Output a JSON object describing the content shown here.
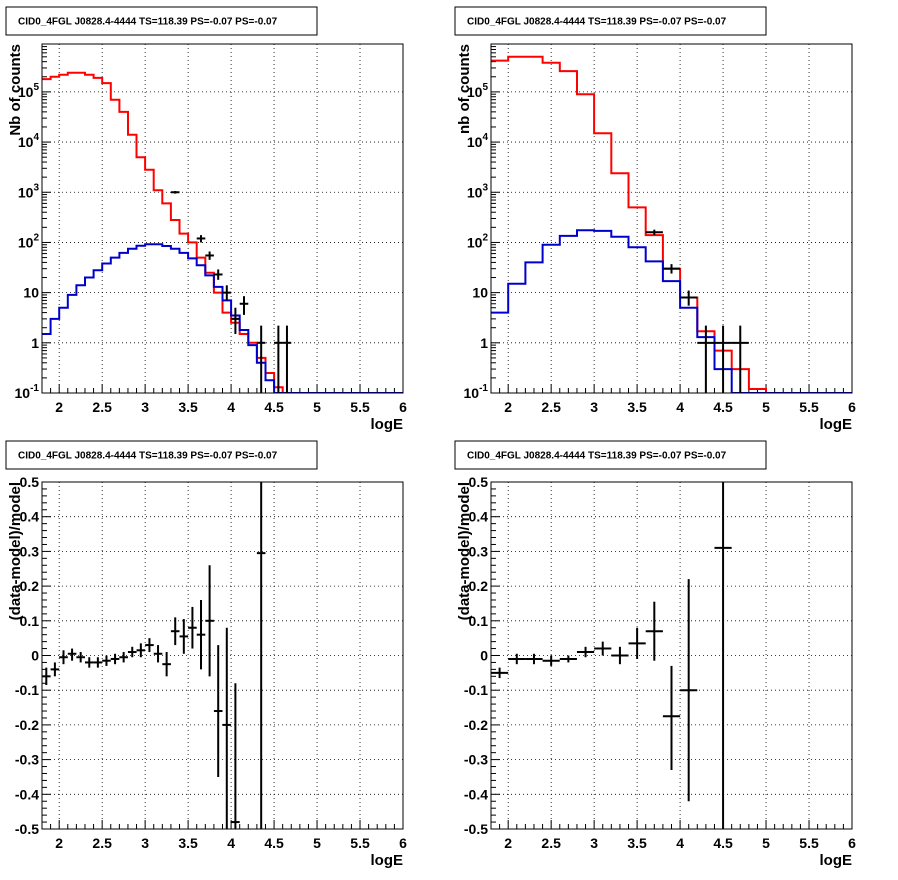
{
  "panel_title": "CID0_4FGL J0828.4-4444 TS=118.39 PS=-0.07 PS=-0.07",
  "colors": {
    "model_total": "#ff0000",
    "model_source": "#0000cc",
    "data": "#000000",
    "grid": "#000000"
  },
  "chart_data": [
    {
      "type": "line",
      "title": "CID0_4FGL J0828.4-4444 TS=118.39 PS=-0.07 PS=-0.07",
      "xlabel": "logE",
      "ylabel": "Nb of counts",
      "xlim": [
        1.8,
        6.0
      ],
      "ylim": [
        0.1,
        900000
      ],
      "yscale": "log",
      "grid": true,
      "x_ticks": [
        "2",
        "2.5",
        "3",
        "3.5",
        "4",
        "4.5",
        "5",
        "5.5",
        "6"
      ],
      "y_ticks": [
        "10-1",
        "1",
        "10",
        "10^2",
        "10^3",
        "10^4",
        "10^5"
      ],
      "series": [
        {
          "style": "step",
          "color": "red",
          "edges": [
            1.8,
            1.9,
            2.0,
            2.1,
            2.2,
            2.3,
            2.4,
            2.5,
            2.6,
            2.7,
            2.8,
            2.9,
            3.0,
            3.1,
            3.2,
            3.3,
            3.4,
            3.5,
            3.6,
            3.7,
            3.8,
            3.9,
            4.0,
            4.1,
            4.2,
            4.3,
            4.4,
            4.5,
            4.6,
            4.7,
            4.8,
            4.9,
            5.0,
            5.1,
            5.2,
            5.3,
            5.4,
            5.5,
            5.6,
            5.7,
            5.8,
            5.9,
            6.0
          ],
          "values": [
            180000,
            200000,
            220000,
            240000,
            240000,
            220000,
            190000,
            150000,
            70000,
            40000,
            14000,
            5000,
            2800,
            1100,
            600,
            280,
            150,
            100,
            50,
            25,
            10,
            4,
            2.5,
            1.5,
            1.0,
            0.5,
            0.25,
            0.13,
            0.1,
            0.1,
            0.1,
            0.1,
            0.1,
            0.1,
            0.1,
            0.1,
            0.1,
            0.1,
            0.1,
            0.1,
            0.1,
            0.1
          ]
        },
        {
          "style": "step",
          "color": "blue",
          "edges": [
            1.8,
            1.9,
            2.0,
            2.1,
            2.2,
            2.3,
            2.4,
            2.5,
            2.6,
            2.7,
            2.8,
            2.9,
            3.0,
            3.1,
            3.2,
            3.3,
            3.4,
            3.5,
            3.6,
            3.7,
            3.8,
            3.9,
            4.0,
            4.1,
            4.2,
            4.3,
            4.4,
            4.5,
            4.6,
            4.7,
            4.8,
            4.9,
            5.0,
            5.1,
            5.2,
            5.3,
            5.4,
            5.5,
            5.6,
            5.7,
            5.8,
            5.9,
            6.0
          ],
          "values": [
            1.5,
            3,
            5,
            9,
            14,
            20,
            28,
            38,
            50,
            62,
            75,
            86,
            92,
            92,
            85,
            75,
            62,
            48,
            35,
            22,
            13,
            7,
            3.5,
            1.8,
            0.9,
            0.4,
            0.18,
            0.1,
            0.1,
            0.1,
            0.1,
            0.1,
            0.1,
            0.1,
            0.1,
            0.1,
            0.1,
            0.1,
            0.1,
            0.1,
            0.1,
            0.1
          ]
        },
        {
          "style": "points",
          "color": "black",
          "points": [
            {
              "x": 3.35,
              "y": 1000,
              "xerr": 0.05,
              "ylo": 940,
              "yhi": 1060
            },
            {
              "x": 3.65,
              "y": 120,
              "xerr": 0.05,
              "ylo": 100,
              "yhi": 140
            },
            {
              "x": 3.75,
              "y": 55,
              "xerr": 0.05,
              "ylo": 45,
              "yhi": 66
            },
            {
              "x": 3.85,
              "y": 23,
              "xerr": 0.05,
              "ylo": 18,
              "yhi": 29
            },
            {
              "x": 3.95,
              "y": 10,
              "xerr": 0.05,
              "ylo": 7,
              "yhi": 14
            },
            {
              "x": 4.05,
              "y": 3,
              "xerr": 0.05,
              "ylo": 1.5,
              "yhi": 5
            },
            {
              "x": 4.15,
              "y": 6,
              "xerr": 0.05,
              "ylo": 3.6,
              "yhi": 8.5
            },
            {
              "x": 4.35,
              "y": 1,
              "xerr": 0.05,
              "ylo": 0.1,
              "yhi": 2.2
            },
            {
              "x": 4.55,
              "y": 1,
              "xerr": 0.05,
              "ylo": 0.1,
              "yhi": 2.2
            },
            {
              "x": 4.65,
              "y": 1,
              "xerr": 0.05,
              "ylo": 0.1,
              "yhi": 2.2
            }
          ]
        }
      ]
    },
    {
      "type": "line",
      "title": "CID0_4FGL J0828.4-4444 TS=118.39 PS=-0.07 PS=-0.07",
      "xlabel": "logE",
      "ylabel": "nb of counts",
      "xlim": [
        1.8,
        6.0
      ],
      "ylim": [
        0.1,
        900000
      ],
      "yscale": "log",
      "grid": true,
      "x_ticks": [
        "2",
        "2.5",
        "3",
        "3.5",
        "4",
        "4.5",
        "5",
        "5.5",
        "6"
      ],
      "y_ticks": [
        "10-1",
        "1",
        "10",
        "10^2",
        "10^3",
        "10^4",
        "10^5"
      ],
      "series": [
        {
          "style": "step",
          "color": "red",
          "edges": [
            1.8,
            2.0,
            2.2,
            2.4,
            2.6,
            2.8,
            3.0,
            3.2,
            3.4,
            3.6,
            3.8,
            4.0,
            4.2,
            4.4,
            4.6,
            4.8,
            5.0,
            5.2,
            5.4,
            5.6,
            5.8,
            6.0
          ],
          "values": [
            420000,
            500000,
            500000,
            380000,
            260000,
            90000,
            15000,
            2400,
            500,
            140,
            30,
            8,
            1.7,
            0.7,
            0.3,
            0.12,
            0.1,
            0.1,
            0.1,
            0.1,
            0.1
          ]
        },
        {
          "style": "step",
          "color": "blue",
          "edges": [
            1.8,
            2.0,
            2.2,
            2.4,
            2.6,
            2.8,
            3.0,
            3.2,
            3.4,
            3.6,
            3.8,
            4.0,
            4.2,
            4.4,
            4.6,
            4.8,
            5.0,
            5.2,
            5.4,
            5.6,
            5.8,
            6.0
          ],
          "values": [
            4,
            15,
            40,
            90,
            135,
            175,
            170,
            130,
            80,
            42,
            17,
            5,
            1.3,
            0.3,
            0.1,
            0.1,
            0.1,
            0.1,
            0.1,
            0.1,
            0.1
          ]
        },
        {
          "style": "points",
          "color": "black",
          "points": [
            {
              "x": 3.7,
              "y": 160,
              "xerr": 0.1,
              "ylo": 140,
              "yhi": 180
            },
            {
              "x": 3.9,
              "y": 30,
              "xerr": 0.1,
              "ylo": 24,
              "yhi": 37
            },
            {
              "x": 4.1,
              "y": 8,
              "xerr": 0.1,
              "ylo": 5.5,
              "yhi": 11
            },
            {
              "x": 4.3,
              "y": 1,
              "xerr": 0.1,
              "ylo": 0.1,
              "yhi": 2.2
            },
            {
              "x": 4.5,
              "y": 1,
              "xerr": 0.1,
              "ylo": 0.1,
              "yhi": 2.2
            },
            {
              "x": 4.7,
              "y": 1,
              "xerr": 0.1,
              "ylo": 0.1,
              "yhi": 2.2
            }
          ]
        }
      ]
    },
    {
      "type": "scatter",
      "title": "CID0_4FGL J0828.4-4444 TS=118.39 PS=-0.07 PS=-0.07",
      "xlabel": "logE",
      "ylabel": "(data-model)/model",
      "xlim": [
        1.8,
        6.0
      ],
      "ylim": [
        -0.5,
        0.5
      ],
      "grid": true,
      "x_ticks": [
        "2",
        "2.5",
        "3",
        "3.5",
        "4",
        "4.5",
        "5",
        "5.5",
        "6"
      ],
      "y_ticks": [
        "-0.5",
        "-0.4",
        "-0.3",
        "-0.2",
        "-0.1",
        "0",
        "0.1",
        "0.2",
        "0.3",
        "0.4",
        "0.5"
      ],
      "series": [
        {
          "color": "black",
          "points": [
            {
              "x": 1.85,
              "y": -0.06,
              "xerr": 0.05,
              "ylo": -0.085,
              "yhi": -0.035
            },
            {
              "x": 1.95,
              "y": -0.04,
              "xerr": 0.05,
              "ylo": -0.06,
              "yhi": -0.02
            },
            {
              "x": 2.05,
              "y": -0.005,
              "xerr": 0.05,
              "ylo": -0.025,
              "yhi": 0.015
            },
            {
              "x": 2.15,
              "y": 0.005,
              "xerr": 0.05,
              "ylo": -0.015,
              "yhi": 0.02
            },
            {
              "x": 2.25,
              "y": -0.005,
              "xerr": 0.05,
              "ylo": -0.02,
              "yhi": 0.01
            },
            {
              "x": 2.35,
              "y": -0.02,
              "xerr": 0.05,
              "ylo": -0.035,
              "yhi": -0.005
            },
            {
              "x": 2.45,
              "y": -0.02,
              "xerr": 0.05,
              "ylo": -0.035,
              "yhi": -0.005
            },
            {
              "x": 2.55,
              "y": -0.015,
              "xerr": 0.05,
              "ylo": -0.03,
              "yhi": 0.0
            },
            {
              "x": 2.65,
              "y": -0.01,
              "xerr": 0.05,
              "ylo": -0.025,
              "yhi": 0.005
            },
            {
              "x": 2.75,
              "y": -0.005,
              "xerr": 0.05,
              "ylo": -0.02,
              "yhi": 0.01
            },
            {
              "x": 2.85,
              "y": 0.01,
              "xerr": 0.05,
              "ylo": -0.005,
              "yhi": 0.025
            },
            {
              "x": 2.95,
              "y": 0.015,
              "xerr": 0.05,
              "ylo": -0.005,
              "yhi": 0.035
            },
            {
              "x": 3.05,
              "y": 0.03,
              "xerr": 0.05,
              "ylo": 0.01,
              "yhi": 0.05
            },
            {
              "x": 3.15,
              "y": 0.005,
              "xerr": 0.05,
              "ylo": -0.02,
              "yhi": 0.03
            },
            {
              "x": 3.25,
              "y": -0.025,
              "xerr": 0.05,
              "ylo": -0.06,
              "yhi": 0.01
            },
            {
              "x": 3.35,
              "y": 0.07,
              "xerr": 0.05,
              "ylo": 0.03,
              "yhi": 0.11
            },
            {
              "x": 3.45,
              "y": 0.055,
              "xerr": 0.05,
              "ylo": 0.005,
              "yhi": 0.105
            },
            {
              "x": 3.55,
              "y": 0.08,
              "xerr": 0.05,
              "ylo": 0.02,
              "yhi": 0.14
            },
            {
              "x": 3.65,
              "y": 0.06,
              "xerr": 0.05,
              "ylo": -0.04,
              "yhi": 0.16
            },
            {
              "x": 3.75,
              "y": 0.1,
              "xerr": 0.05,
              "ylo": -0.06,
              "yhi": 0.26
            },
            {
              "x": 3.85,
              "y": -0.16,
              "xerr": 0.05,
              "ylo": -0.35,
              "yhi": 0.03
            },
            {
              "x": 3.95,
              "y": -0.2,
              "xerr": 0.05,
              "ylo": -0.5,
              "yhi": 0.08
            },
            {
              "x": 4.05,
              "y": -0.48,
              "xerr": 0.05,
              "ylo": -0.5,
              "yhi": -0.08
            },
            {
              "x": 4.35,
              "y": 0.295,
              "xerr": 0.05,
              "ylo": -0.5,
              "yhi": 0.5
            }
          ]
        }
      ]
    },
    {
      "type": "scatter",
      "title": "CID0_4FGL J0828.4-4444 TS=118.39 PS=-0.07 PS=-0.07",
      "xlabel": "logE",
      "ylabel": "(data-model)/model",
      "xlim": [
        1.8,
        6.0
      ],
      "ylim": [
        -0.5,
        0.5
      ],
      "grid": true,
      "x_ticks": [
        "2",
        "2.5",
        "3",
        "3.5",
        "4",
        "4.5",
        "5",
        "5.5",
        "6"
      ],
      "y_ticks": [
        "-0.5",
        "-0.4",
        "-0.3",
        "-0.2",
        "-0.1",
        "0",
        "0.1",
        "0.2",
        "0.3",
        "0.4",
        "0.5"
      ],
      "series": [
        {
          "color": "black",
          "points": [
            {
              "x": 1.9,
              "y": -0.05,
              "xerr": 0.1,
              "ylo": -0.065,
              "yhi": -0.035
            },
            {
              "x": 2.1,
              "y": -0.01,
              "xerr": 0.1,
              "ylo": -0.025,
              "yhi": 0.005
            },
            {
              "x": 2.3,
              "y": -0.01,
              "xerr": 0.1,
              "ylo": -0.025,
              "yhi": 0.005
            },
            {
              "x": 2.5,
              "y": -0.015,
              "xerr": 0.1,
              "ylo": -0.03,
              "yhi": 0.0
            },
            {
              "x": 2.7,
              "y": -0.01,
              "xerr": 0.1,
              "ylo": -0.02,
              "yhi": 0.0
            },
            {
              "x": 2.9,
              "y": 0.01,
              "xerr": 0.1,
              "ylo": -0.005,
              "yhi": 0.025
            },
            {
              "x": 3.1,
              "y": 0.02,
              "xerr": 0.1,
              "ylo": 0.0,
              "yhi": 0.04
            },
            {
              "x": 3.3,
              "y": 0.0,
              "xerr": 0.1,
              "ylo": -0.025,
              "yhi": 0.025
            },
            {
              "x": 3.5,
              "y": 0.035,
              "xerr": 0.1,
              "ylo": -0.01,
              "yhi": 0.08
            },
            {
              "x": 3.7,
              "y": 0.07,
              "xerr": 0.1,
              "ylo": -0.015,
              "yhi": 0.155
            },
            {
              "x": 3.9,
              "y": -0.175,
              "xerr": 0.1,
              "ylo": -0.33,
              "yhi": -0.03
            },
            {
              "x": 4.1,
              "y": -0.1,
              "xerr": 0.1,
              "ylo": -0.42,
              "yhi": 0.22
            },
            {
              "x": 4.5,
              "y": 0.31,
              "xerr": 0.1,
              "ylo": -0.5,
              "yhi": 0.5
            }
          ]
        }
      ]
    }
  ]
}
